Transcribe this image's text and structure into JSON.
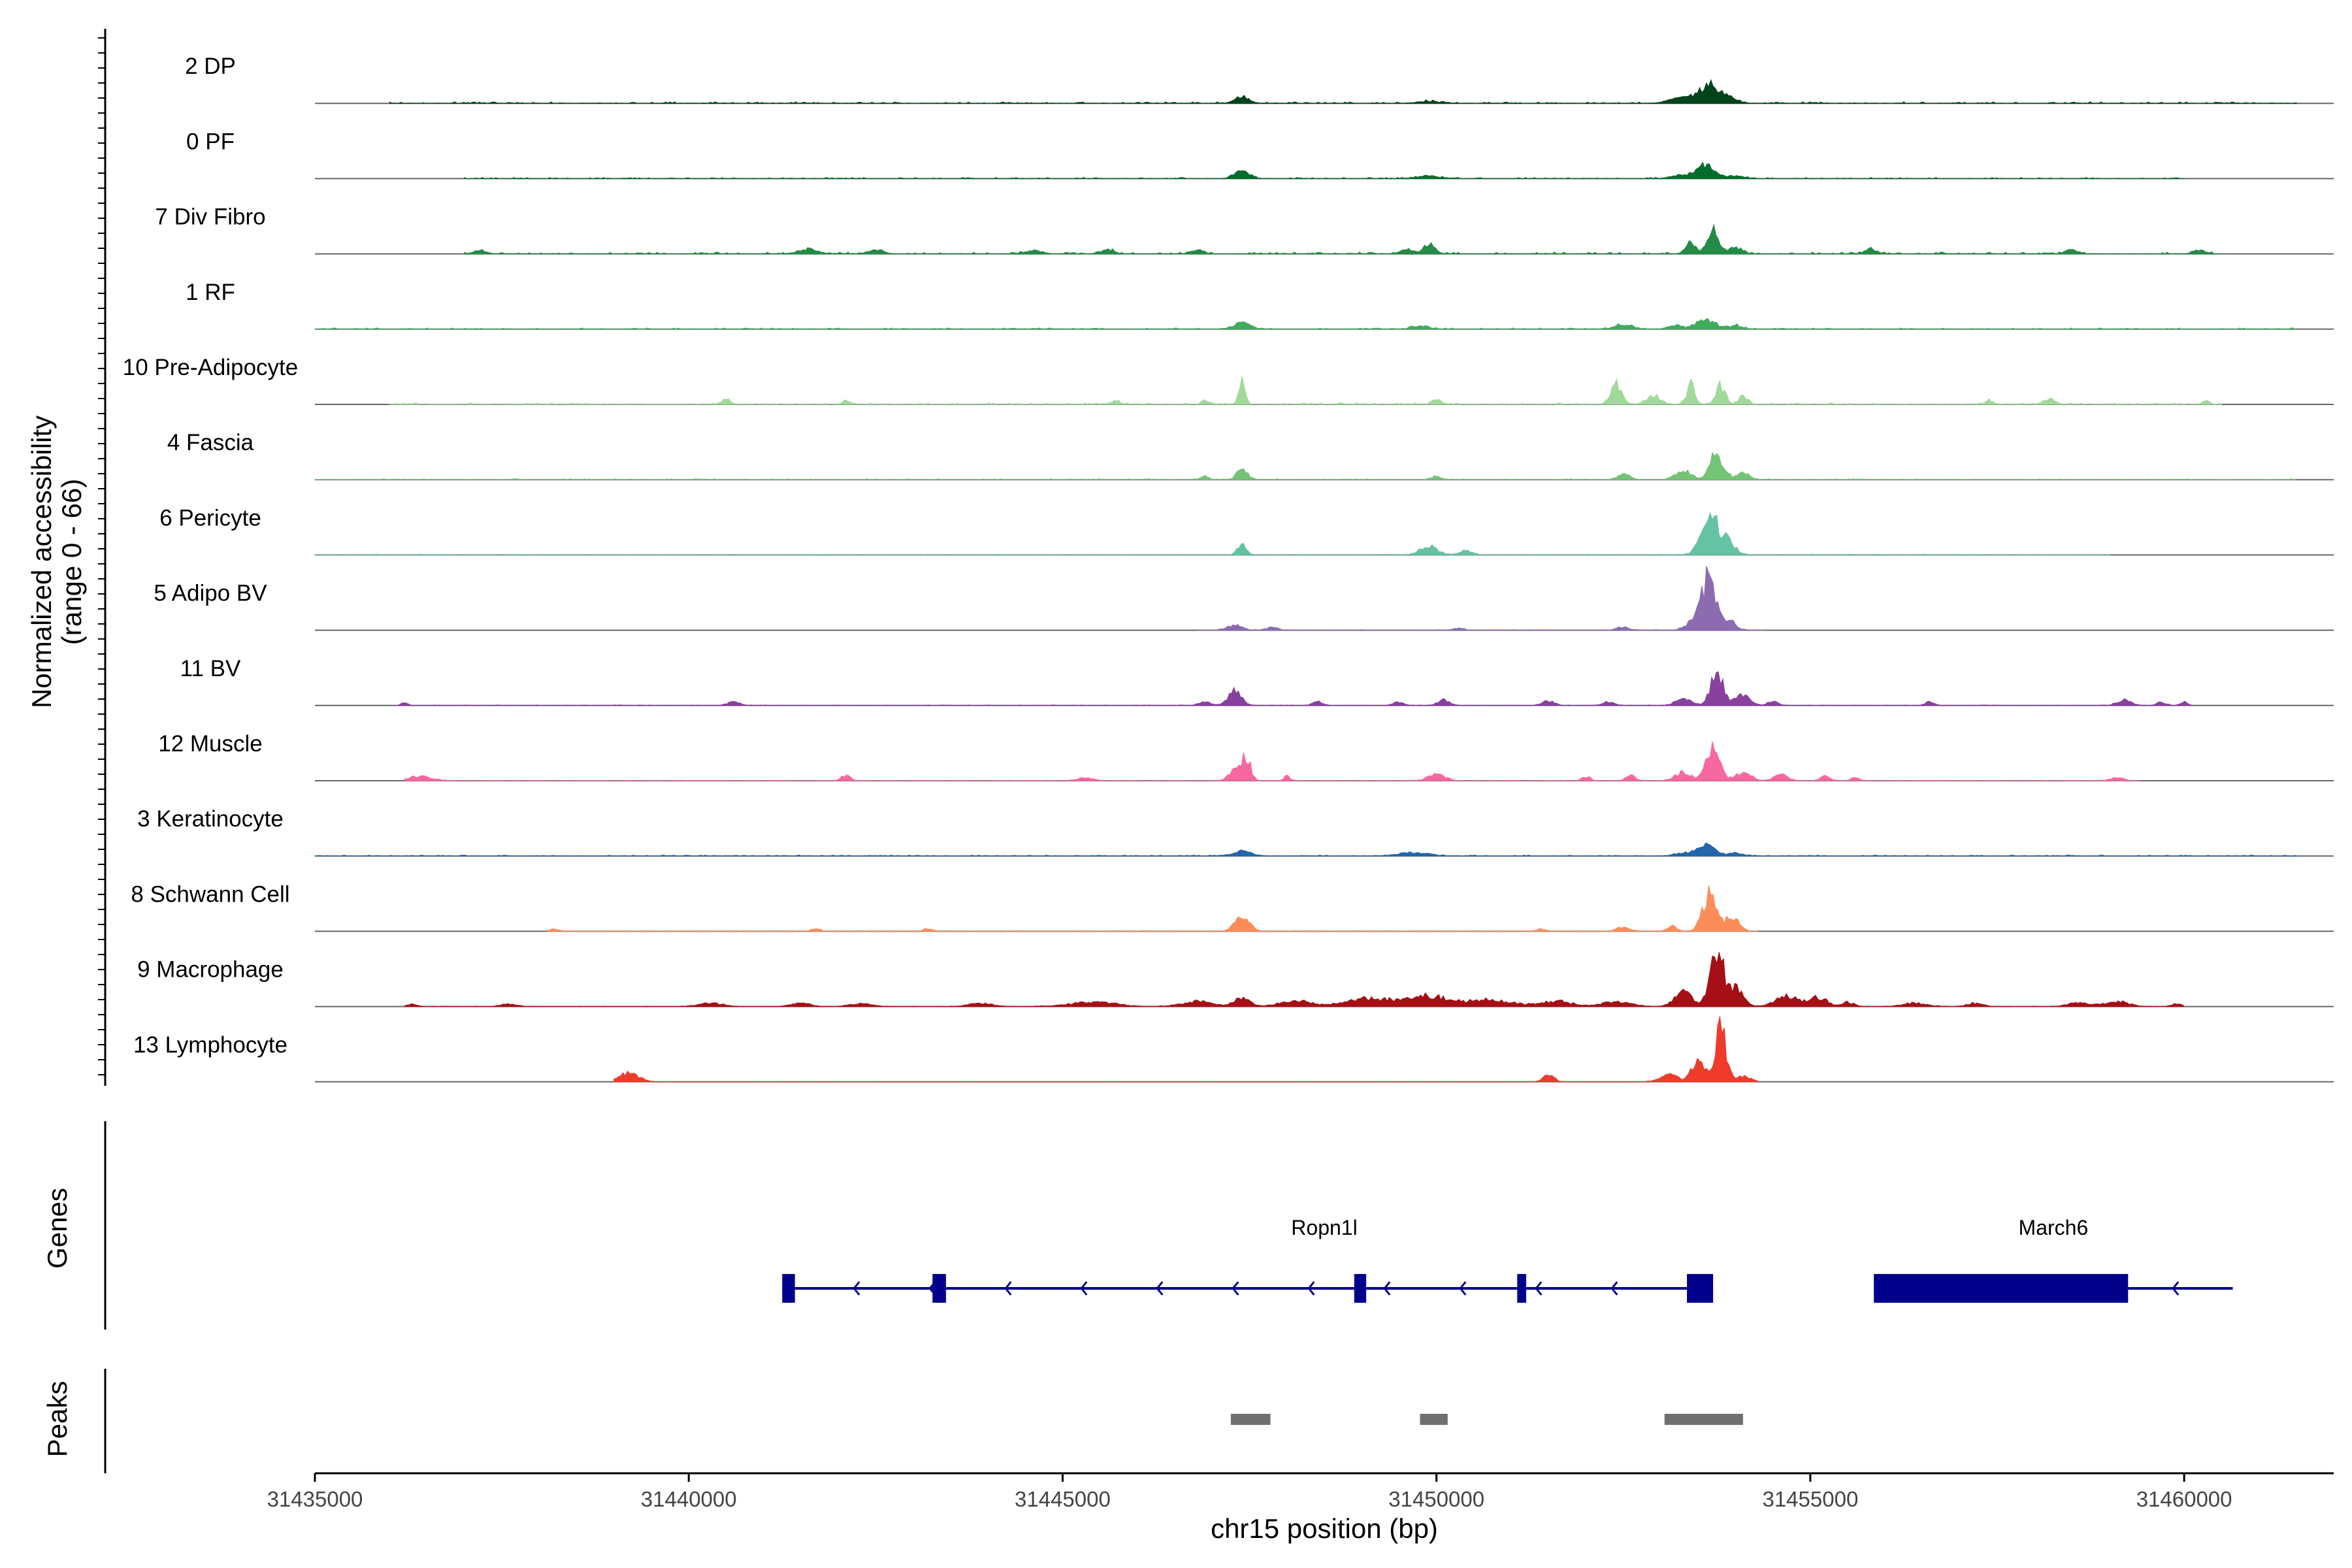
{
  "chart_data": {
    "type": "area",
    "title": "",
    "xlabel": "chr15 position (bp)",
    "ylabel_line1": "Normalized accessibility",
    "ylabel_line2": "(range 0 - 66)",
    "y_range": [
      0,
      66
    ],
    "xlim": [
      31435000,
      31462000
    ],
    "x_ticks": [
      31435000,
      31440000,
      31445000,
      31450000,
      31455000,
      31460000
    ],
    "x_tick_labels": [
      "31435000",
      "31440000",
      "31445000",
      "31450000",
      "31455000",
      "31460000"
    ],
    "series": [
      {
        "name": "2 DP",
        "color": "#00441b",
        "peaks": [
          [
            31447400,
            8,
            90
          ],
          [
            31449900,
            2,
            150
          ],
          [
            31453300,
            6,
            180
          ],
          [
            31453650,
            20,
            120
          ],
          [
            31453900,
            6,
            120
          ]
        ],
        "noise": 1.5,
        "extent": [
          31436000,
          31461500
        ]
      },
      {
        "name": "0 PF",
        "color": "#006d2c",
        "peaks": [
          [
            31447400,
            10,
            90
          ],
          [
            31449900,
            3,
            150
          ],
          [
            31453600,
            16,
            110
          ],
          [
            31453300,
            4,
            150
          ],
          [
            31454000,
            3,
            120
          ]
        ],
        "noise": 1.2,
        "extent": [
          31437000,
          31460000
        ]
      },
      {
        "name": "7 Div Fibro",
        "color": "#238b45",
        "peaks": [
          [
            31437200,
            4,
            80
          ],
          [
            31441600,
            5,
            120
          ],
          [
            31442500,
            4,
            100
          ],
          [
            31444600,
            4,
            100
          ],
          [
            31445600,
            5,
            80
          ],
          [
            31446800,
            5,
            80
          ],
          [
            31449900,
            12,
            70
          ],
          [
            31449600,
            5,
            80
          ],
          [
            31453400,
            12,
            70
          ],
          [
            31453700,
            28,
            70
          ],
          [
            31454000,
            8,
            80
          ],
          [
            31455800,
            5,
            80
          ],
          [
            31458500,
            4,
            80
          ],
          [
            31460200,
            4,
            80
          ]
        ],
        "noise": 1.8,
        "extent": [
          31437000,
          31460500
        ]
      },
      {
        "name": "1 RF",
        "color": "#41ab5d",
        "peaks": [
          [
            31447400,
            8,
            100
          ],
          [
            31449800,
            3,
            120
          ],
          [
            31452500,
            5,
            120
          ],
          [
            31453600,
            11,
            120
          ],
          [
            31453200,
            4,
            100
          ],
          [
            31454000,
            4,
            100
          ]
        ],
        "noise": 1.2,
        "extent": [
          31435000,
          31461500
        ]
      },
      {
        "name": "10 Pre-Adipocyte",
        "color": "#a1d99b",
        "peaks": [
          [
            31440500,
            6,
            60
          ],
          [
            31442100,
            4,
            50
          ],
          [
            31445700,
            4,
            60
          ],
          [
            31447400,
            28,
            40
          ],
          [
            31446900,
            6,
            40
          ],
          [
            31452400,
            26,
            70
          ],
          [
            31452900,
            10,
            90
          ],
          [
            31453400,
            22,
            55
          ],
          [
            31453800,
            22,
            60
          ],
          [
            31454100,
            10,
            60
          ],
          [
            31450000,
            5,
            60
          ],
          [
            31457400,
            5,
            50
          ],
          [
            31458200,
            6,
            70
          ],
          [
            31460300,
            5,
            40
          ]
        ],
        "noise": 1.5,
        "extent": [
          31436000,
          31460500
        ]
      },
      {
        "name": "4 Fascia",
        "color": "#74c476",
        "peaks": [
          [
            31447400,
            12,
            70
          ],
          [
            31446900,
            4,
            50
          ],
          [
            31450000,
            4,
            60
          ],
          [
            31452500,
            6,
            80
          ],
          [
            31453300,
            10,
            100
          ],
          [
            31453750,
            30,
            90
          ],
          [
            31454100,
            8,
            80
          ]
        ],
        "noise": 1.0,
        "extent": [
          31435000,
          31461500
        ]
      },
      {
        "name": "6 Pericyte",
        "color": "#66c2a4",
        "peaks": [
          [
            31447400,
            12,
            60
          ],
          [
            31449900,
            10,
            110
          ],
          [
            31450400,
            5,
            80
          ],
          [
            31453650,
            48,
            110
          ],
          [
            31453900,
            14,
            100
          ]
        ],
        "noise": 0.8,
        "extent": [
          31435000,
          31459000
        ]
      },
      {
        "name": "5 Adipo BV",
        "color": "#8c6bb1",
        "peaks": [
          [
            31447300,
            6,
            100
          ],
          [
            31447800,
            3,
            80
          ],
          [
            31450300,
            3,
            60
          ],
          [
            31452500,
            4,
            80
          ],
          [
            31453650,
            60,
            90
          ],
          [
            31453450,
            10,
            110
          ],
          [
            31453900,
            12,
            90
          ]
        ],
        "noise": 0.6,
        "extent": [
          31446800,
          31454400
        ]
      },
      {
        "name": "11 BV",
        "color": "#88419d",
        "peaks": [
          [
            31436200,
            3,
            40
          ],
          [
            31440600,
            4,
            80
          ],
          [
            31446900,
            4,
            80
          ],
          [
            31447300,
            16,
            90
          ],
          [
            31448400,
            5,
            60
          ],
          [
            31449500,
            4,
            60
          ],
          [
            31450100,
            6,
            80
          ],
          [
            31451500,
            5,
            80
          ],
          [
            31452300,
            4,
            80
          ],
          [
            31453300,
            8,
            100
          ],
          [
            31453750,
            42,
            80
          ],
          [
            31454100,
            12,
            100
          ],
          [
            31454500,
            5,
            60
          ],
          [
            31456600,
            4,
            60
          ],
          [
            31459200,
            6,
            90
          ],
          [
            31459700,
            4,
            60
          ],
          [
            31460000,
            4,
            50
          ]
        ],
        "noise": 0.6,
        "extent": [
          31436100,
          31460100
        ]
      },
      {
        "name": "12 Muscle",
        "color": "#f768a1",
        "peaks": [
          [
            31436400,
            5,
            150
          ],
          [
            31442100,
            6,
            60
          ],
          [
            31445300,
            4,
            90
          ],
          [
            31447300,
            12,
            80
          ],
          [
            31447450,
            28,
            60
          ],
          [
            31448000,
            5,
            40
          ],
          [
            31450000,
            8,
            110
          ],
          [
            31452000,
            5,
            50
          ],
          [
            31452600,
            6,
            60
          ],
          [
            31453300,
            10,
            100
          ],
          [
            31453700,
            35,
            90
          ],
          [
            31454100,
            10,
            100
          ],
          [
            31454600,
            7,
            90
          ],
          [
            31455200,
            5,
            60
          ],
          [
            31455600,
            4,
            50
          ],
          [
            31459100,
            4,
            80
          ]
        ],
        "noise": 0.5,
        "extent": [
          31436200,
          31459400
        ]
      },
      {
        "name": "3 Keratinocyte",
        "color": "#2166ac",
        "peaks": [
          [
            31447400,
            6,
            120
          ],
          [
            31449700,
            4,
            200
          ],
          [
            31453600,
            12,
            120
          ],
          [
            31453300,
            3,
            120
          ],
          [
            31454000,
            3,
            100
          ]
        ],
        "noise": 1.0,
        "extent": [
          31435000,
          31461500
        ]
      },
      {
        "name": "8 Schwann Cell",
        "color": "#fc8d59",
        "peaks": [
          [
            31438200,
            2,
            80
          ],
          [
            31441700,
            3,
            60
          ],
          [
            31443200,
            3,
            60
          ],
          [
            31447400,
            16,
            100
          ],
          [
            31451400,
            3,
            60
          ],
          [
            31452500,
            5,
            80
          ],
          [
            31453150,
            6,
            60
          ],
          [
            31453650,
            42,
            90
          ],
          [
            31453950,
            16,
            90
          ]
        ],
        "noise": 0.4,
        "extent": [
          31438100,
          31454300
        ]
      },
      {
        "name": "9 Macrophage",
        "color": "#a50f15",
        "peaks": [
          [
            31436300,
            3,
            60
          ],
          [
            31437600,
            3,
            100
          ],
          [
            31440300,
            4,
            150
          ],
          [
            31441500,
            4,
            120
          ],
          [
            31442300,
            3,
            150
          ],
          [
            31443900,
            4,
            150
          ],
          [
            31445400,
            5,
            300
          ],
          [
            31446800,
            6,
            200
          ],
          [
            31447400,
            10,
            100
          ],
          [
            31448100,
            7,
            200
          ],
          [
            31449100,
            10,
            300
          ],
          [
            31449900,
            12,
            250
          ],
          [
            31450700,
            8,
            300
          ],
          [
            31451600,
            6,
            200
          ],
          [
            31452400,
            5,
            200
          ],
          [
            31453300,
            16,
            120
          ],
          [
            31453750,
            60,
            90
          ],
          [
            31454000,
            20,
            100
          ],
          [
            31454700,
            12,
            150
          ],
          [
            31455100,
            10,
            120
          ],
          [
            31455500,
            5,
            80
          ],
          [
            31456400,
            4,
            150
          ],
          [
            31457200,
            4,
            100
          ],
          [
            31458600,
            4,
            150
          ],
          [
            31459100,
            6,
            150
          ],
          [
            31459900,
            3,
            60
          ]
        ],
        "noise": 0.4,
        "extent": [
          31436200,
          31460000
        ]
      },
      {
        "name": "13 Lymphocyte",
        "color": "#ef3b2c",
        "peaks": [
          [
            31439200,
            10,
            130
          ],
          [
            31451500,
            9,
            70
          ],
          [
            31453100,
            8,
            120
          ],
          [
            31453500,
            24,
            90
          ],
          [
            31453800,
            66,
            70
          ],
          [
            31454100,
            6,
            100
          ]
        ],
        "noise": 0.3,
        "extent": [
          31439000,
          31454300
        ]
      }
    ],
    "genes": {
      "track_label": "Genes",
      "color": "#00008b",
      "items": [
        {
          "name": "Ropn1l",
          "start": 31441250,
          "end": 31453700,
          "strand": "-",
          "exons": [
            [
              31441250,
              31441420
            ],
            [
              31443260,
              31443440
            ],
            [
              31448900,
              31449060
            ],
            [
              31451080,
              31451200
            ],
            [
              31453350,
              31453700
            ]
          ]
        },
        {
          "name": "March6",
          "start": 31455850,
          "end": 31460650,
          "strand": "-",
          "exons": [
            [
              31455850,
              31459250
            ]
          ]
        }
      ]
    },
    "peaks_track": {
      "track_label": "Peaks",
      "color": "#707070",
      "regions": [
        [
          31447250,
          31447780
        ],
        [
          31449780,
          31450150
        ],
        [
          31453050,
          31454100
        ]
      ]
    }
  }
}
